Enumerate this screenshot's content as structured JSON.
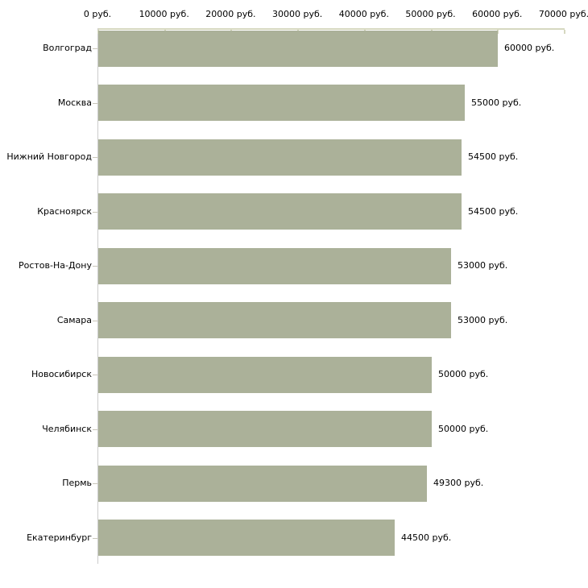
{
  "chart_data": {
    "type": "bar",
    "orientation": "horizontal",
    "unit": "руб.",
    "categories": [
      "Волгоград",
      "Москва",
      "Нижний Новгород",
      "Красноярск",
      "Ростов-На-Дону",
      "Самара",
      "Новосибирск",
      "Челябинск",
      "Пермь",
      "Екатеринбург"
    ],
    "values": [
      60000,
      55000,
      54500,
      54500,
      53000,
      53000,
      50000,
      50000,
      49300,
      44500
    ],
    "value_labels": [
      "60000 руб.",
      "55000 руб.",
      "54500 руб.",
      "54500 руб.",
      "53000 руб.",
      "53000 руб.",
      "50000 руб.",
      "50000 руб.",
      "49300 руб.",
      "44500 руб."
    ],
    "x_ticks": [
      0,
      10000,
      20000,
      30000,
      40000,
      50000,
      60000,
      70000
    ],
    "x_tick_labels": [
      "0 руб.",
      "10000 руб.",
      "20000 руб.",
      "30000 руб.",
      "40000 руб.",
      "50000 руб.",
      "60000 руб.",
      "70000 руб."
    ],
    "xlim": [
      0,
      70000
    ],
    "grid": false,
    "legend": false,
    "colors": {
      "bar": "#abb199",
      "axis": "#d6d8c0",
      "y_axis_line": "#cccccc",
      "category_tick": "#c9c6ba",
      "text": "#000000",
      "background": "#ffffff"
    }
  }
}
